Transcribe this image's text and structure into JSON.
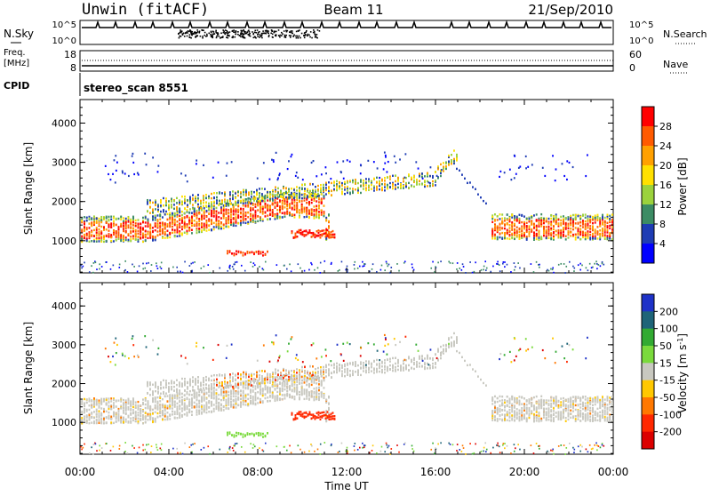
{
  "header": {
    "station": "Unwin (fitACF)",
    "beam": "Beam 11",
    "date": "21/Sep/2010"
  },
  "panels": {
    "nsky": {
      "left_label": "N.Sky",
      "right_label": "N.Search",
      "left_ticks": [
        "10^5",
        "10^0"
      ],
      "right_ticks": [
        "10^5",
        "10^0"
      ]
    },
    "freq": {
      "left_label_1": "Freq.",
      "left_label_2": "[MHz]",
      "left_ticks": [
        "18",
        "8"
      ],
      "right_label": "Nave",
      "right_ticks": [
        "60",
        "0"
      ]
    },
    "cpid": {
      "label": "CPID",
      "text": "stereo_scan 8551"
    }
  },
  "chart_data": [
    {
      "type": "heatmap",
      "title": "",
      "xlabel": "Time UT",
      "ylabel": "Slant Range [km]",
      "x_ticks": [
        "00:00",
        "04:00",
        "08:00",
        "12:00",
        "16:00",
        "20:00",
        "00:00"
      ],
      "y_ticks": [
        1000,
        2000,
        3000,
        4000
      ],
      "xlim": [
        "00:00",
        "24:00"
      ],
      "ylim": [
        180,
        4600
      ],
      "colorbar": {
        "label": "Power [dB]",
        "ticks": [
          "28",
          "24",
          "20",
          "16",
          "12",
          "8",
          "4"
        ],
        "colors": [
          "#ff0000",
          "#ff5a00",
          "#ffa000",
          "#ffe000",
          "#9bd23c",
          "#3c8c64",
          "#1e3cb4",
          "#0000ff"
        ]
      }
    },
    {
      "type": "heatmap",
      "title": "",
      "xlabel": "Time UT",
      "ylabel": "Slant Range [km]",
      "x_ticks": [
        "00:00",
        "04:00",
        "08:00",
        "12:00",
        "16:00",
        "20:00",
        "00:00"
      ],
      "y_ticks": [
        1000,
        2000,
        3000,
        4000
      ],
      "xlim": [
        "00:00",
        "24:00"
      ],
      "ylim": [
        180,
        4600
      ],
      "colorbar": {
        "label": "Velocity [m s^-1]",
        "ticks": [
          "200",
          "100",
          "50",
          "15",
          "-15",
          "-50",
          "-100",
          "-200"
        ],
        "colors": [
          "#1e32c8",
          "#1e6478",
          "#32aa32",
          "#7ada3c",
          "#c8c8c0",
          "#ffc800",
          "#ff7800",
          "#ff2800",
          "#dc0000"
        ]
      }
    }
  ]
}
